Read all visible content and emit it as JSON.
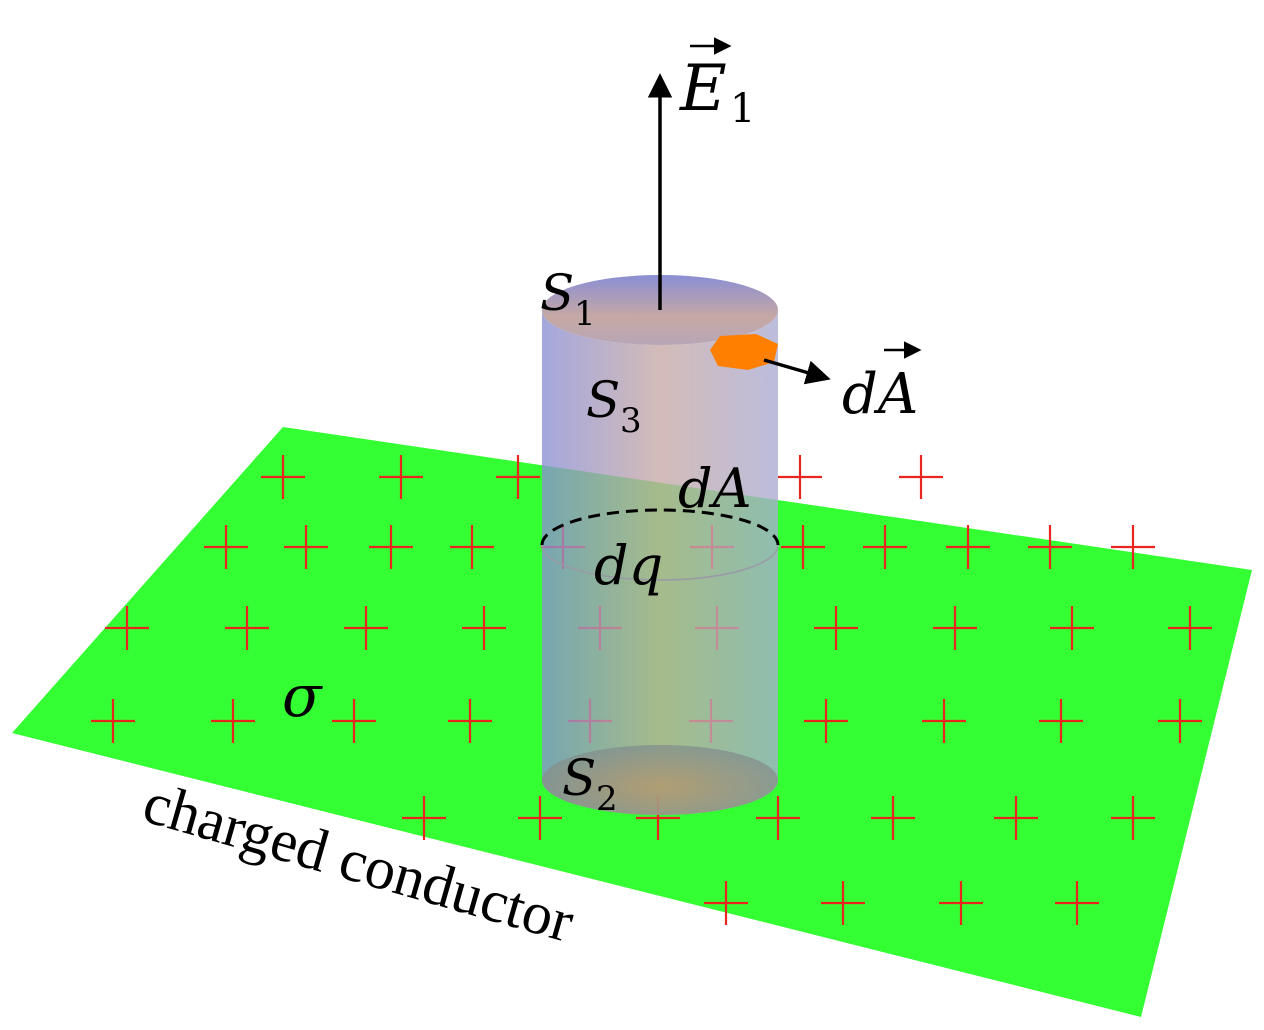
{
  "labels": {
    "field": "E",
    "field_sub": "1",
    "top_cap": "S",
    "top_cap_sub": "1",
    "side_surface": "S",
    "side_surface_sub": "3",
    "bottom_cap": "S",
    "bottom_cap_sub": "2",
    "area_vector": "dA",
    "area_element": "dA",
    "charge_element": "dq",
    "surface_density": "σ",
    "caption": "charged conductor"
  },
  "colors": {
    "conductor": "#33ff33",
    "plus_signs": "#e8251e",
    "cylinder_edge": "#8c8cc8",
    "cylinder_center": "#c8a89a",
    "area_patch": "#ff7f00",
    "arrows": "#000000"
  },
  "icons": {
    "plus": "plus-charge-icon"
  }
}
